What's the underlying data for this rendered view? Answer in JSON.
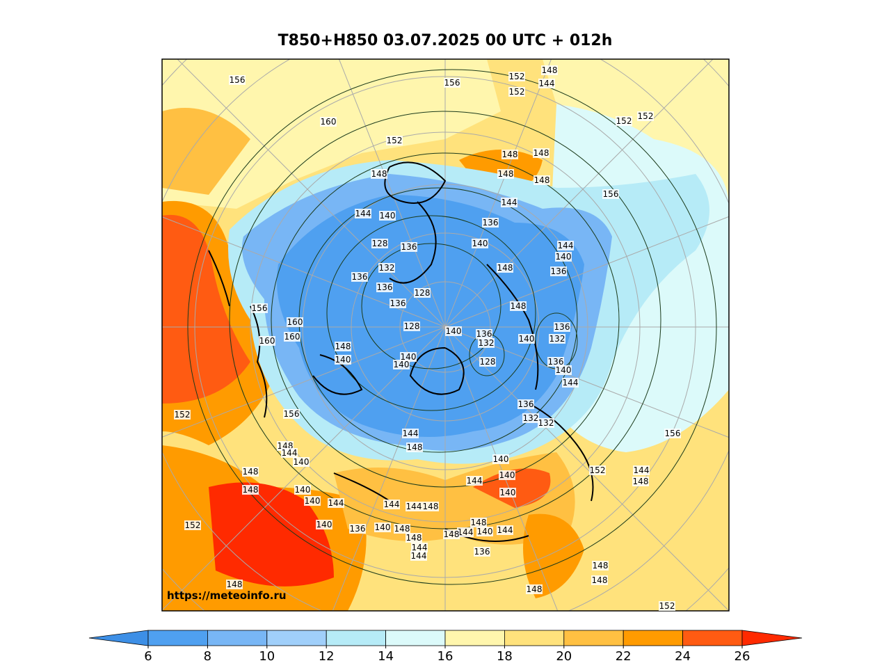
{
  "title": "T850+H850 03.07.2025 00 UTC + 012h",
  "watermark": "https://meteoinfo.ru",
  "colorbar": {
    "ticks": [
      6,
      8,
      10,
      12,
      14,
      16,
      18,
      20,
      22,
      24,
      26
    ],
    "colors": [
      "#3d8fe6",
      "#4fa0f0",
      "#78b6f5",
      "#a0cffa",
      "#b6ebf7",
      "#dcfafa",
      "#fff6ad",
      "#ffe27c",
      "#ffc042",
      "#ff9b00",
      "#ff5b12",
      "#ff2a00"
    ]
  },
  "contour_labels": [
    156,
    156,
    152,
    148,
    152,
    144,
    160,
    152,
    152,
    152,
    148,
    148,
    148,
    148,
    156,
    148,
    144,
    144,
    140,
    136,
    128,
    136,
    140,
    144,
    140,
    132,
    148,
    136,
    136,
    136,
    128,
    136,
    148,
    156,
    160,
    128,
    140,
    136,
    136,
    160,
    160,
    132,
    140,
    132,
    148,
    140,
    140,
    140,
    128,
    136,
    140,
    144,
    136,
    132,
    132,
    156,
    156,
    152,
    144,
    148,
    148,
    144,
    140,
    140,
    140,
    144,
    152,
    144,
    148,
    148,
    148,
    140,
    140,
    140,
    144,
    144,
    144,
    148,
    148,
    140,
    136,
    140,
    148,
    144,
    148,
    140,
    144,
    148,
    144,
    144,
    136,
    152,
    148,
    148,
    148,
    152,
    148
  ]
}
